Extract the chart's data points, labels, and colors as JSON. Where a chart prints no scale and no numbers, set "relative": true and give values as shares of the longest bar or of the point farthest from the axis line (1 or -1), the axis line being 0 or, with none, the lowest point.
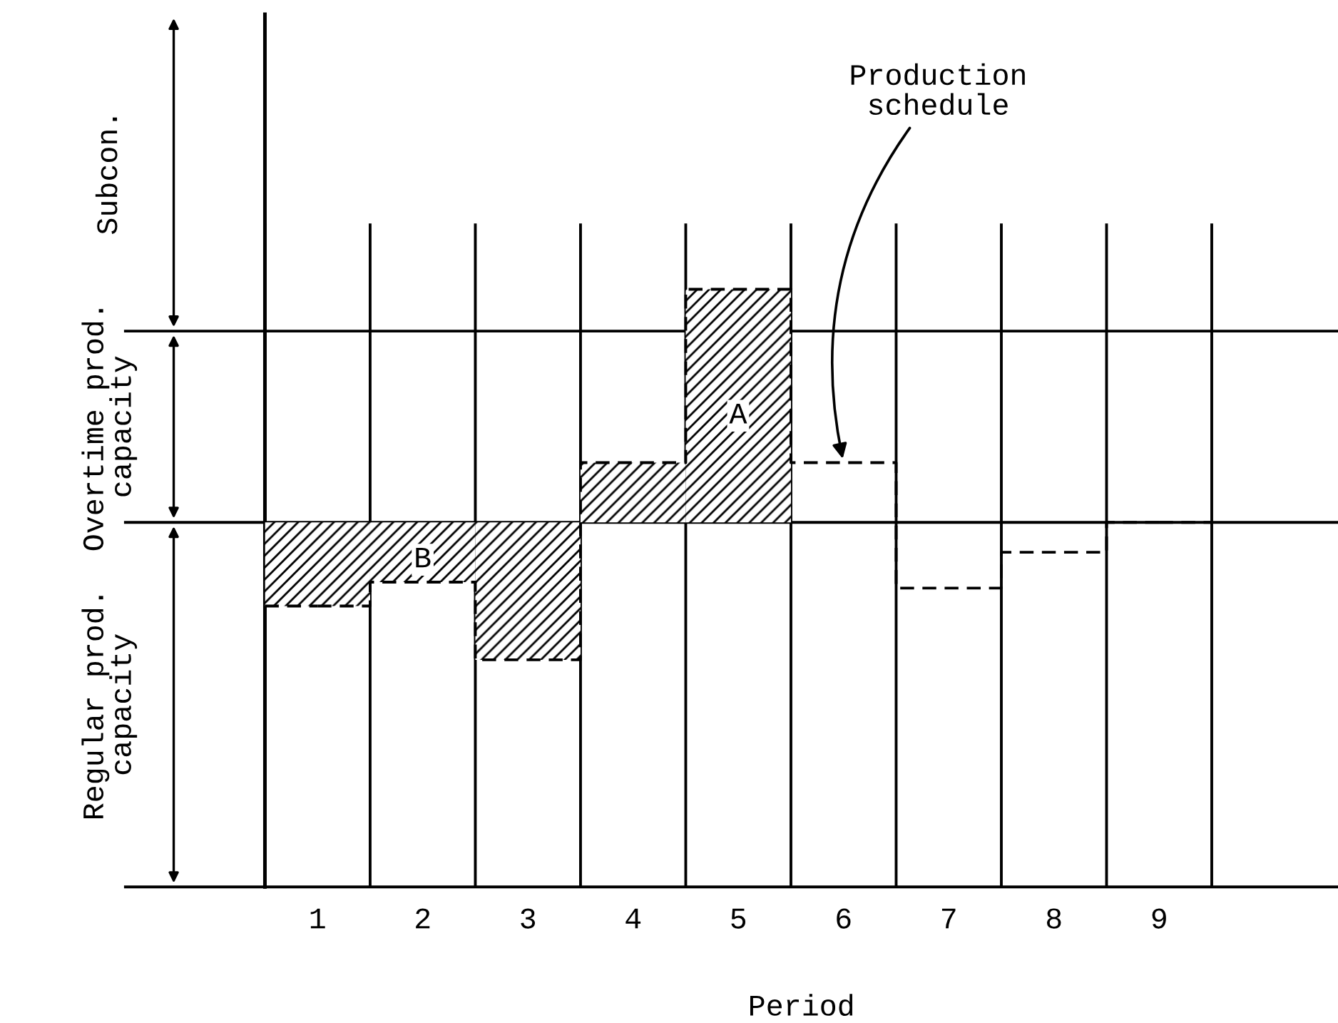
{
  "chart_data": {
    "type": "step",
    "relative": true,
    "xlabel": "Period",
    "categories": [
      "1",
      "2",
      "3",
      "4",
      "5",
      "6",
      "7",
      "8",
      "9"
    ],
    "series": [
      {
        "color": "#000000",
        "line_style": "dashed",
        "values": [
          0.47,
          0.51,
          0.38,
          0.71,
          1.0,
          0.71,
          0.5,
          0.56,
          0.61
        ]
      }
    ],
    "ref_lines": [
      {
        "axis": "y",
        "value": 0.61
      },
      {
        "axis": "y",
        "value": 0.93
      }
    ],
    "annotations": [
      "Regular prod.\ncapacity",
      "Overtime prod.\ncapacity",
      "Subcon.",
      {
        "text": "Production\nschedule",
        "x": "6",
        "y": 0.71
      },
      "A",
      "B"
    ],
    "grid": "x",
    "legend": false
  }
}
